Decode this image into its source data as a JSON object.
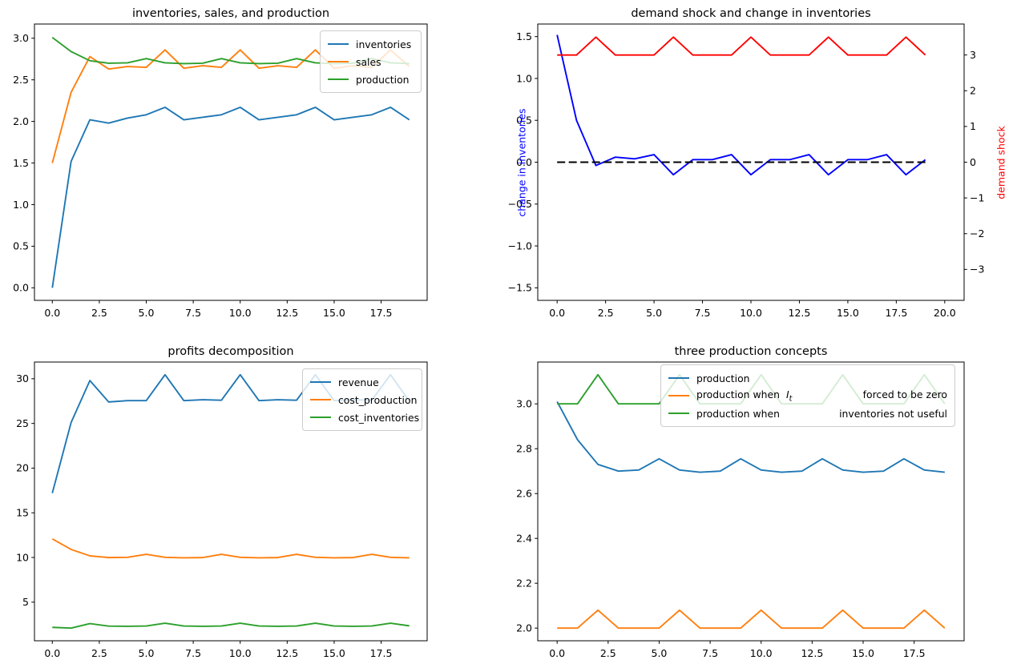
{
  "figure": {
    "background": "#ffffff"
  },
  "colors": {
    "tab_blue": "#1f77b4",
    "tab_orange": "#ff7f0e",
    "tab_green": "#2ca02c",
    "pure_blue": "#0000ff",
    "pure_red": "#ff0000",
    "black": "#000000"
  },
  "chart_data": [
    {
      "type": "line",
      "title": "inventories, sales, and production",
      "x": [
        0,
        1,
        2,
        3,
        4,
        5,
        6,
        7,
        8,
        9,
        10,
        11,
        12,
        13,
        14,
        15,
        16,
        17,
        18,
        19
      ],
      "xlim": [
        -0.95,
        19.95
      ],
      "ylim": [
        -0.151,
        3.171
      ],
      "grid": false,
      "legend_position": "upper right",
      "xticks": {
        "values": [
          0,
          2.5,
          5,
          7.5,
          10,
          12.5,
          15,
          17.5
        ],
        "labels": [
          "0.0",
          "2.5",
          "5.0",
          "7.5",
          "10.0",
          "12.5",
          "15.0",
          "17.5"
        ]
      },
      "yticks": {
        "values": [
          0,
          0.5,
          1,
          1.5,
          2,
          2.5,
          3
        ],
        "labels": [
          "0.0",
          "0.5",
          "1.0",
          "1.5",
          "2.0",
          "2.5",
          "3.0"
        ]
      },
      "series": [
        {
          "name": "inventories",
          "color": "#1f77b4",
          "values": [
            0.0,
            1.52,
            2.02,
            1.98,
            2.04,
            2.08,
            2.17,
            2.02,
            2.05,
            2.08,
            2.17,
            2.02,
            2.05,
            2.08,
            2.17,
            2.02,
            2.05,
            2.08,
            2.17,
            2.02
          ]
        },
        {
          "name": "sales",
          "color": "#ff7f0e",
          "values": [
            1.5,
            2.35,
            2.78,
            2.63,
            2.66,
            2.65,
            2.86,
            2.64,
            2.67,
            2.65,
            2.86,
            2.64,
            2.67,
            2.65,
            2.86,
            2.64,
            2.67,
            2.65,
            2.86,
            2.66
          ]
        },
        {
          "name": "production",
          "color": "#2ca02c",
          "values": [
            3.01,
            2.84,
            2.73,
            2.7,
            2.705,
            2.755,
            2.705,
            2.695,
            2.7,
            2.755,
            2.705,
            2.695,
            2.7,
            2.755,
            2.705,
            2.695,
            2.7,
            2.755,
            2.705,
            2.695
          ]
        }
      ],
      "legend": {
        "entries": [
          {
            "color": "#1f77b4",
            "left": [
              {
                "t": "inventories"
              }
            ]
          },
          {
            "color": "#ff7f0e",
            "left": [
              {
                "t": "sales"
              }
            ]
          },
          {
            "color": "#2ca02c",
            "left": [
              {
                "t": "production"
              }
            ]
          }
        ]
      }
    },
    {
      "type": "line",
      "title": "demand shock and change in inventories",
      "x": [
        0,
        1,
        2,
        3,
        4,
        5,
        6,
        7,
        8,
        9,
        10,
        11,
        12,
        13,
        14,
        15,
        16,
        17,
        18,
        19
      ],
      "xlim": [
        -1,
        21
      ],
      "ylim": [
        -1.65,
        1.65
      ],
      "ylim_right": [
        -3.866,
        3.866
      ],
      "grid": false,
      "ylabel_left": {
        "text": "change in inventories",
        "color": "#0000ff"
      },
      "ylabel_right": {
        "text": "demand shock",
        "color": "#ff0000"
      },
      "xticks": {
        "values": [
          0,
          2.5,
          5,
          7.5,
          10,
          12.5,
          15,
          17.5,
          20
        ],
        "labels": [
          "0.0",
          "2.5",
          "5.0",
          "7.5",
          "10.0",
          "12.5",
          "15.0",
          "17.5",
          "20.0"
        ]
      },
      "yticks": {
        "values": [
          -1.5,
          -1,
          -0.5,
          0,
          0.5,
          1,
          1.5
        ],
        "labels": [
          "−1.5",
          "−1.0",
          "−0.5",
          "0.0",
          "0.5",
          "1.0",
          "1.5"
        ]
      },
      "yticks_right": {
        "values": [
          -3,
          -2,
          -1,
          0,
          1,
          2,
          3
        ],
        "labels": [
          "−3",
          "−2",
          "−1",
          "0",
          "1",
          "2",
          "3"
        ]
      },
      "series": [
        {
          "name": "change in inventories",
          "color": "#0000ff",
          "values": [
            1.52,
            0.5,
            -0.04,
            0.06,
            0.04,
            0.09,
            -0.15,
            0.03,
            0.03,
            0.09,
            -0.15,
            0.03,
            0.03,
            0.09,
            -0.15,
            0.03,
            0.03,
            0.09,
            -0.15,
            0.03
          ]
        },
        {
          "name": "demand shock",
          "color": "#ff0000",
          "axis": "right",
          "values": [
            3,
            3,
            3.5,
            3,
            3,
            3,
            3.5,
            3,
            3,
            3,
            3.5,
            3,
            3,
            3,
            3.5,
            3,
            3,
            3,
            3.5,
            3
          ]
        },
        {
          "name": "zero line",
          "color": "#000000",
          "dash": "10 4.5",
          "values": [
            0,
            0,
            0,
            0,
            0,
            0,
            0,
            0,
            0,
            0,
            0,
            0,
            0,
            0,
            0,
            0,
            0,
            0,
            0,
            0
          ]
        }
      ]
    },
    {
      "type": "line",
      "title": "profits decomposition",
      "x": [
        0,
        1,
        2,
        3,
        4,
        5,
        6,
        7,
        8,
        9,
        10,
        11,
        12,
        13,
        14,
        15,
        16,
        17,
        18,
        19
      ],
      "xlim": [
        -0.95,
        19.95
      ],
      "ylim": [
        0.68,
        31.87
      ],
      "grid": false,
      "legend_position": "upper right",
      "xticks": {
        "values": [
          0,
          2.5,
          5,
          7.5,
          10,
          12.5,
          15,
          17.5
        ],
        "labels": [
          "0.0",
          "2.5",
          "5.0",
          "7.5",
          "10.0",
          "12.5",
          "15.0",
          "17.5"
        ]
      },
      "yticks": {
        "values": [
          5,
          10,
          15,
          20,
          25,
          30
        ],
        "labels": [
          "5",
          "10",
          "15",
          "20",
          "25",
          "30"
        ]
      },
      "series": [
        {
          "name": "revenue",
          "color": "#1f77b4",
          "values": [
            17.2,
            25.1,
            29.8,
            27.4,
            27.55,
            27.55,
            30.45,
            27.55,
            27.65,
            27.6,
            30.45,
            27.55,
            27.65,
            27.6,
            30.45,
            27.55,
            27.65,
            27.6,
            30.45,
            27.5
          ]
        },
        {
          "name": "cost_production",
          "color": "#ff7f0e",
          "values": [
            12.08,
            10.9,
            10.18,
            9.99,
            10.02,
            10.35,
            10.02,
            9.96,
            9.99,
            10.35,
            10.02,
            9.96,
            9.99,
            10.35,
            10.02,
            9.96,
            9.99,
            10.35,
            10.02,
            9.96
          ]
        },
        {
          "name": "cost_inventories",
          "color": "#2ca02c",
          "values": [
            2.18,
            2.1,
            2.6,
            2.32,
            2.3,
            2.33,
            2.65,
            2.33,
            2.3,
            2.33,
            2.65,
            2.33,
            2.3,
            2.33,
            2.65,
            2.33,
            2.3,
            2.33,
            2.65,
            2.35
          ]
        }
      ],
      "legend": {
        "entries": [
          {
            "color": "#1f77b4",
            "left": [
              {
                "t": "revenue"
              }
            ]
          },
          {
            "color": "#ff7f0e",
            "left": [
              {
                "t": "cost_production"
              }
            ]
          },
          {
            "color": "#2ca02c",
            "left": [
              {
                "t": "cost_inventories"
              }
            ]
          }
        ]
      }
    },
    {
      "type": "line",
      "title": "three production concepts",
      "x": [
        0,
        1,
        2,
        3,
        4,
        5,
        6,
        7,
        8,
        9,
        10,
        11,
        12,
        13,
        14,
        15,
        16,
        17,
        18,
        19
      ],
      "xlim": [
        -0.95,
        19.95
      ],
      "ylim": [
        1.9435,
        3.1865
      ],
      "grid": false,
      "legend_position": "upper right",
      "xticks": {
        "values": [
          0,
          2.5,
          5,
          7.5,
          10,
          12.5,
          15,
          17.5
        ],
        "labels": [
          "0.0",
          "2.5",
          "5.0",
          "7.5",
          "10.0",
          "12.5",
          "15.0",
          "17.5"
        ]
      },
      "yticks": {
        "values": [
          2,
          2.2,
          2.4,
          2.6,
          2.8,
          3
        ],
        "labels": [
          "2.0",
          "2.2",
          "2.4",
          "2.6",
          "2.8",
          "3.0"
        ]
      },
      "series": [
        {
          "name": "production",
          "color": "#1f77b4",
          "values": [
            3.01,
            2.84,
            2.73,
            2.7,
            2.705,
            2.755,
            2.705,
            2.695,
            2.7,
            2.755,
            2.705,
            2.695,
            2.7,
            2.755,
            2.705,
            2.695,
            2.7,
            2.755,
            2.705,
            2.695
          ]
        },
        {
          "name": "production when I_t forced to be zero",
          "color": "#ff7f0e",
          "values": [
            2,
            2,
            2.08,
            2,
            2,
            2,
            2.08,
            2,
            2,
            2,
            2.08,
            2,
            2,
            2,
            2.08,
            2,
            2,
            2,
            2.08,
            2
          ]
        },
        {
          "name": "production when inventories not useful",
          "color": "#2ca02c",
          "values": [
            3,
            3,
            3.13,
            3,
            3,
            3,
            3.13,
            3,
            3,
            3,
            3.13,
            3,
            3,
            3,
            3.13,
            3,
            3,
            3,
            3.13,
            3
          ]
        }
      ],
      "legend": {
        "entries": [
          {
            "color": "#1f77b4",
            "left": [
              {
                "t": "production"
              }
            ]
          },
          {
            "color": "#ff7f0e",
            "left": [
              {
                "t": "production when"
              },
              {
                "math": "I",
                "sub": "t"
              }
            ],
            "right": "forced to be zero"
          },
          {
            "color": "#2ca02c",
            "left": [
              {
                "t": "production when"
              }
            ],
            "right": "inventories not useful"
          }
        ]
      }
    }
  ]
}
